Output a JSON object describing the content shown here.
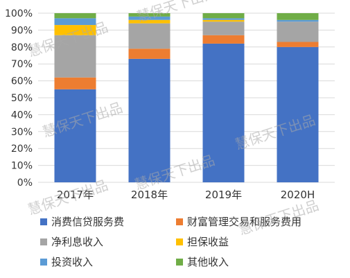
{
  "chart_data": {
    "type": "bar",
    "stacked": true,
    "percent_stacked": true,
    "title": "",
    "xlabel": "",
    "ylabel": "",
    "ylim": [
      0,
      100
    ],
    "yticks": [
      "0%",
      "10%",
      "20%",
      "30%",
      "40%",
      "50%",
      "60%",
      "70%",
      "80%",
      "90%",
      "100%"
    ],
    "grid": true,
    "legend_position": "bottom",
    "categories": [
      "2017年",
      "2018年",
      "2019年",
      "2020H"
    ],
    "series": [
      {
        "name": "消费信贷服务费",
        "color": "#4472C4",
        "values": [
          55,
          73,
          82,
          80
        ]
      },
      {
        "name": "财富管理交易和服务费用",
        "color": "#ED7D31",
        "values": [
          7,
          6,
          5,
          3
        ]
      },
      {
        "name": "净利息收入",
        "color": "#A5A5A5",
        "values": [
          25,
          15,
          8,
          12
        ]
      },
      {
        "name": "担保收益",
        "color": "#FFC000",
        "values": [
          6,
          2,
          1,
          0
        ]
      },
      {
        "name": "投资收入",
        "color": "#5B9BD5",
        "values": [
          4,
          2,
          1,
          1
        ]
      },
      {
        "name": "其他收入",
        "color": "#70AD47",
        "values": [
          3,
          2,
          3,
          4
        ]
      }
    ]
  },
  "watermark_text": "慧保天下出品"
}
